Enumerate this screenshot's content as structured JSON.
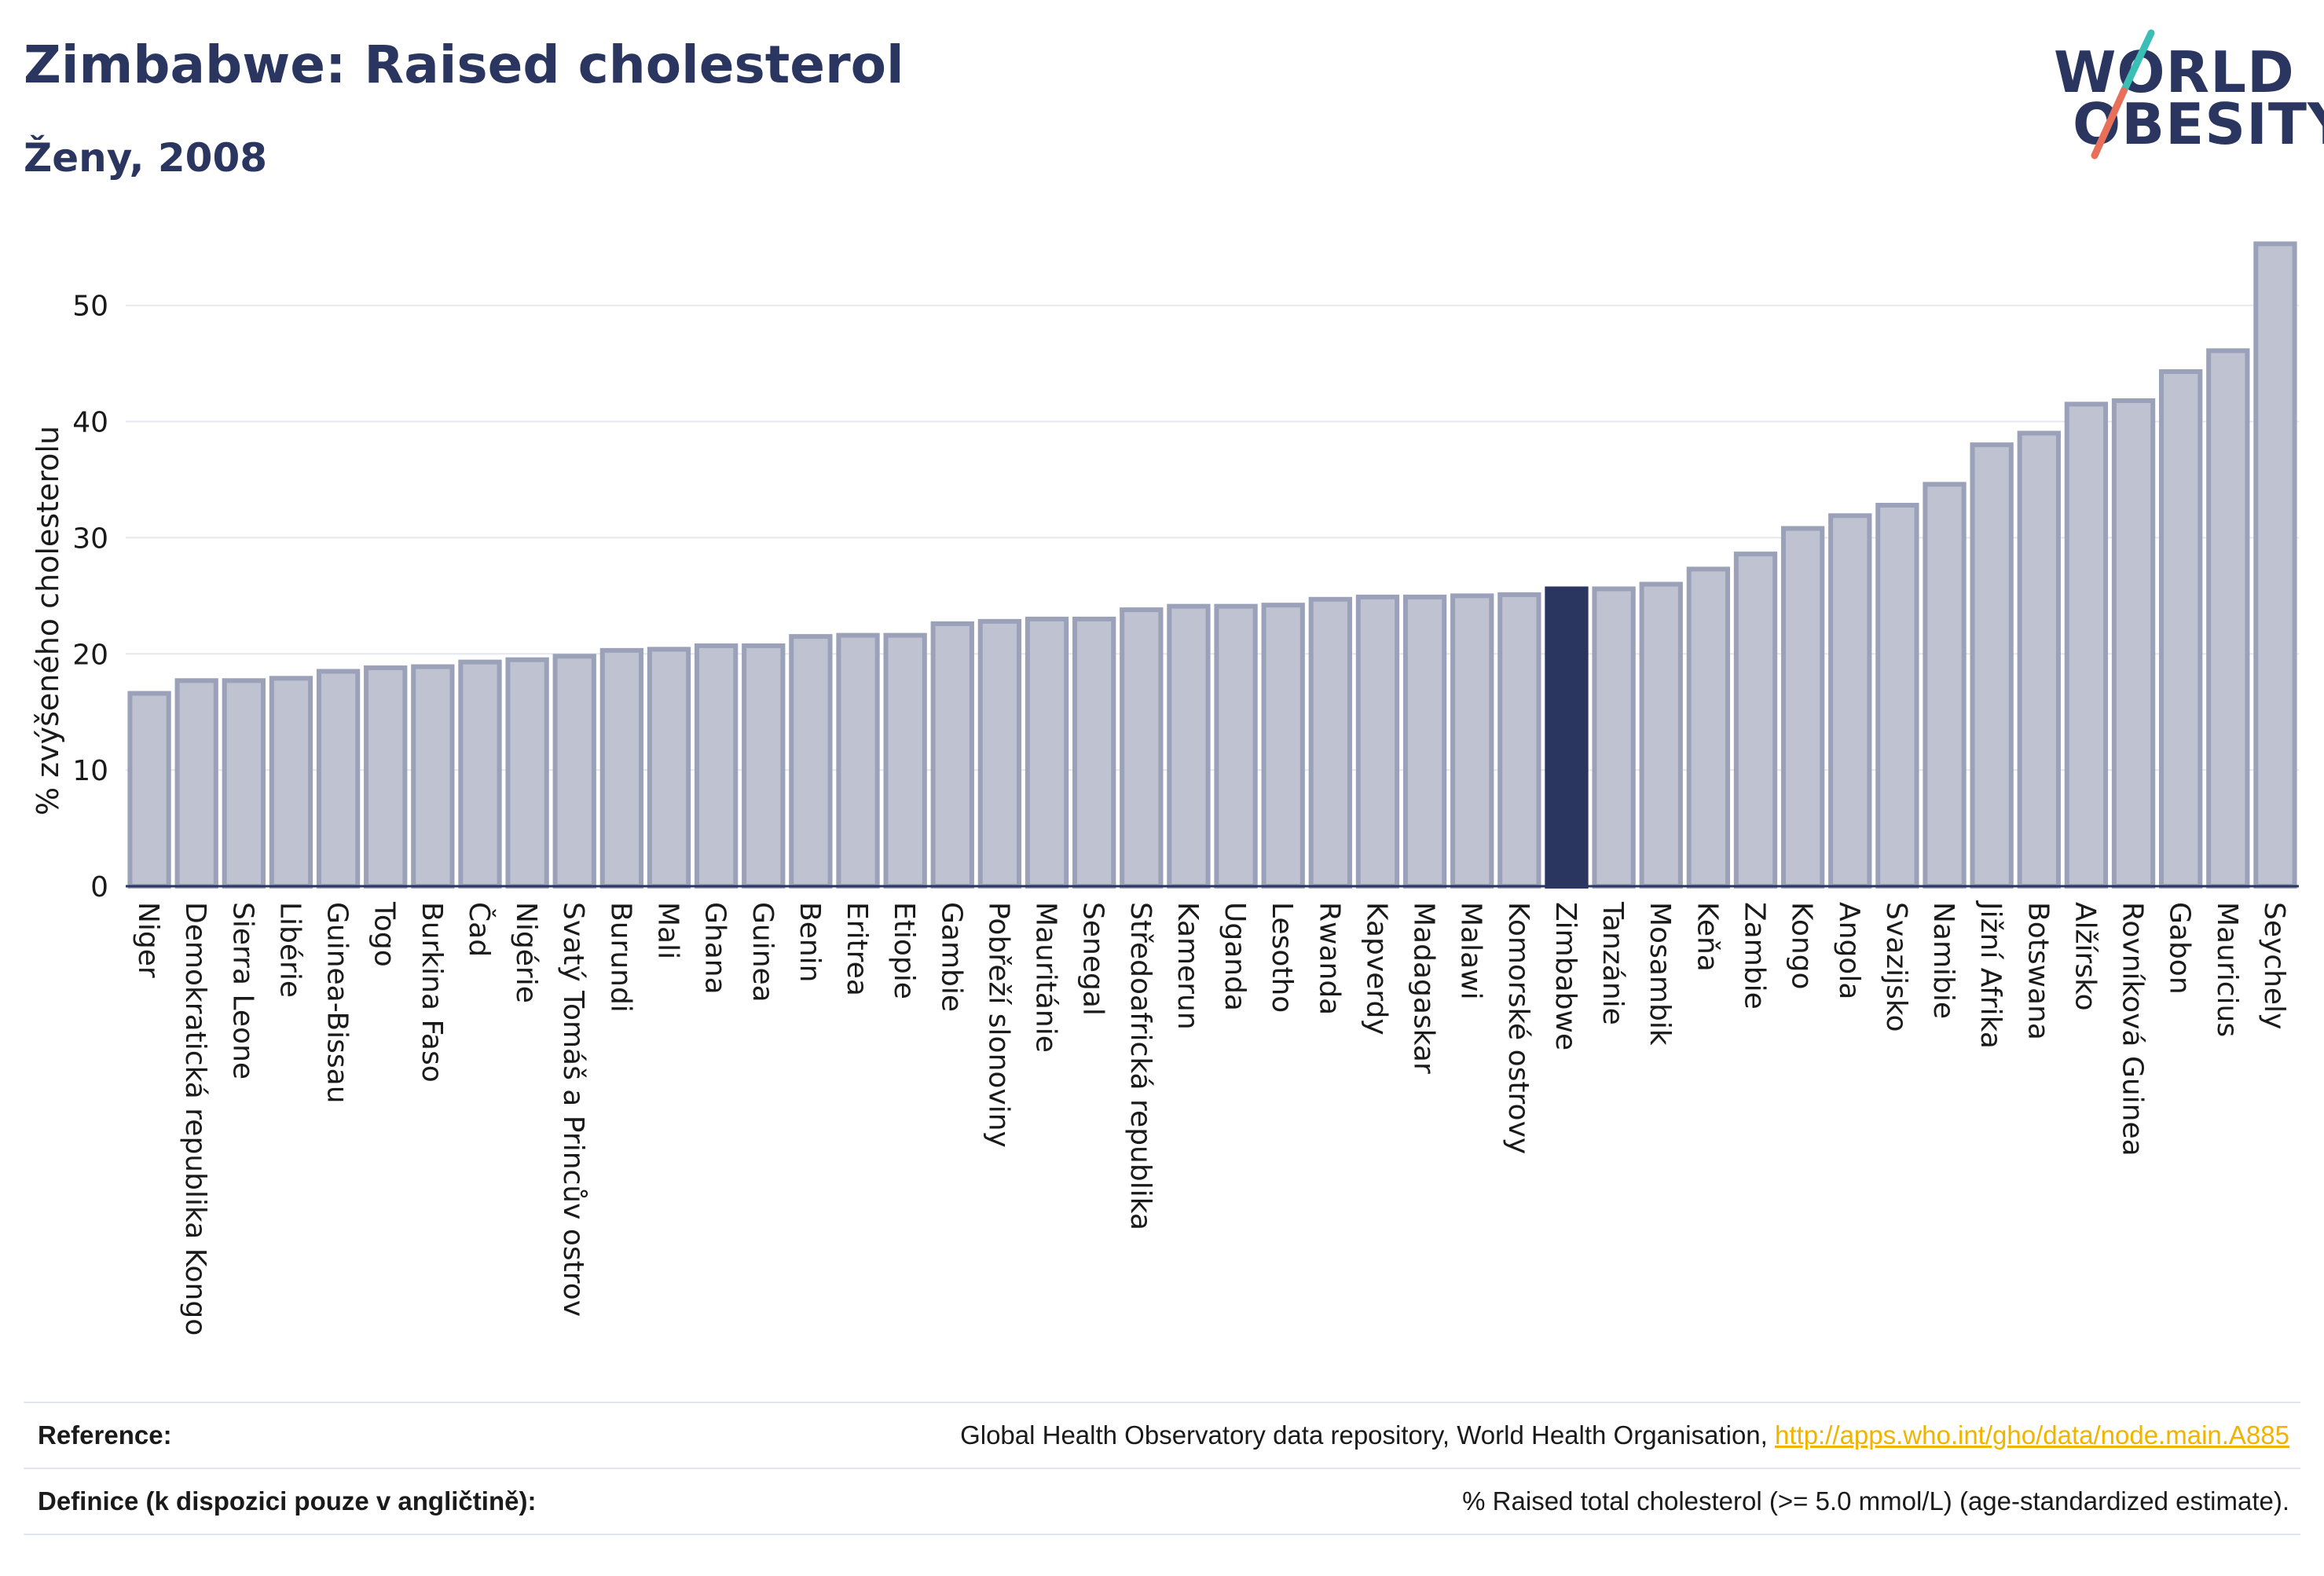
{
  "header": {
    "title": "Zimbabwe: Raised cholesterol",
    "subtitle": "Ženy, 2008"
  },
  "logo": {
    "line1": "WORLD",
    "line2": "OBESITY",
    "colors": {
      "text": "#2a3560",
      "slash_top": "#3bbfb5",
      "slash_bottom": "#e8705a"
    }
  },
  "chart_data": {
    "type": "bar",
    "title": "",
    "xlabel": "",
    "ylabel": "% zvýšeného cholesterolu",
    "ylim": [
      0,
      56
    ],
    "yticks": [
      0,
      10,
      20,
      30,
      40,
      50
    ],
    "grid": true,
    "highlight": "Zimbabwe",
    "colors": {
      "bar": "#bec2d1",
      "bar_edge": "#9aa1b8",
      "highlight": "#2a3560",
      "grid": "#e6e8f0",
      "axis": "#2a3560"
    },
    "categories": [
      "Niger",
      "Demokratická republika Kongo",
      "Sierra Leone",
      "Libérie",
      "Guinea-Bissau",
      "Togo",
      "Burkina Faso",
      "Čad",
      "Nigérie",
      "Svatý Tomáš a Princův ostrov",
      "Burundi",
      "Mali",
      "Ghana",
      "Guinea",
      "Benin",
      "Eritrea",
      "Etiopie",
      "Gambie",
      "Pobřeží slonoviny",
      "Mauritánie",
      "Senegal",
      "Středoafrická republika",
      "Kamerun",
      "Uganda",
      "Lesotho",
      "Rwanda",
      "Kapverdy",
      "Madagaskar",
      "Malawi",
      "Komorské ostrovy",
      "Zimbabwe",
      "Tanzánie",
      "Mosambik",
      "Keňa",
      "Zambie",
      "Kongo",
      "Angola",
      "Svazijsko",
      "Namibie",
      "Jižní Afrika",
      "Botswana",
      "Alžírsko",
      "Rovníková Guinea",
      "Gabon",
      "Mauricius",
      "Seychely"
    ],
    "values": [
      16.6,
      17.7,
      17.7,
      17.9,
      18.5,
      18.8,
      18.9,
      19.3,
      19.5,
      19.8,
      20.3,
      20.4,
      20.7,
      20.7,
      21.5,
      21.6,
      21.6,
      22.6,
      22.8,
      23.0,
      23.0,
      23.8,
      24.1,
      24.1,
      24.2,
      24.7,
      24.9,
      24.9,
      25.0,
      25.1,
      25.6,
      25.6,
      26.0,
      27.3,
      28.6,
      30.8,
      31.9,
      32.8,
      34.6,
      38.0,
      39.0,
      41.5,
      41.8,
      44.3,
      46.1,
      55.3
    ]
  },
  "footer": {
    "reference_label": "Reference:",
    "reference_text": "Global Health Observatory data repository, World Health Organisation,",
    "reference_link": "http://apps.who.int/gho/data/node.main.A885",
    "definition_label": "Definice (k dispozici pouze v angličtině):",
    "definition_text": "% Raised total cholesterol (>= 5.0 mmol/L) (age-standardized estimate)."
  }
}
